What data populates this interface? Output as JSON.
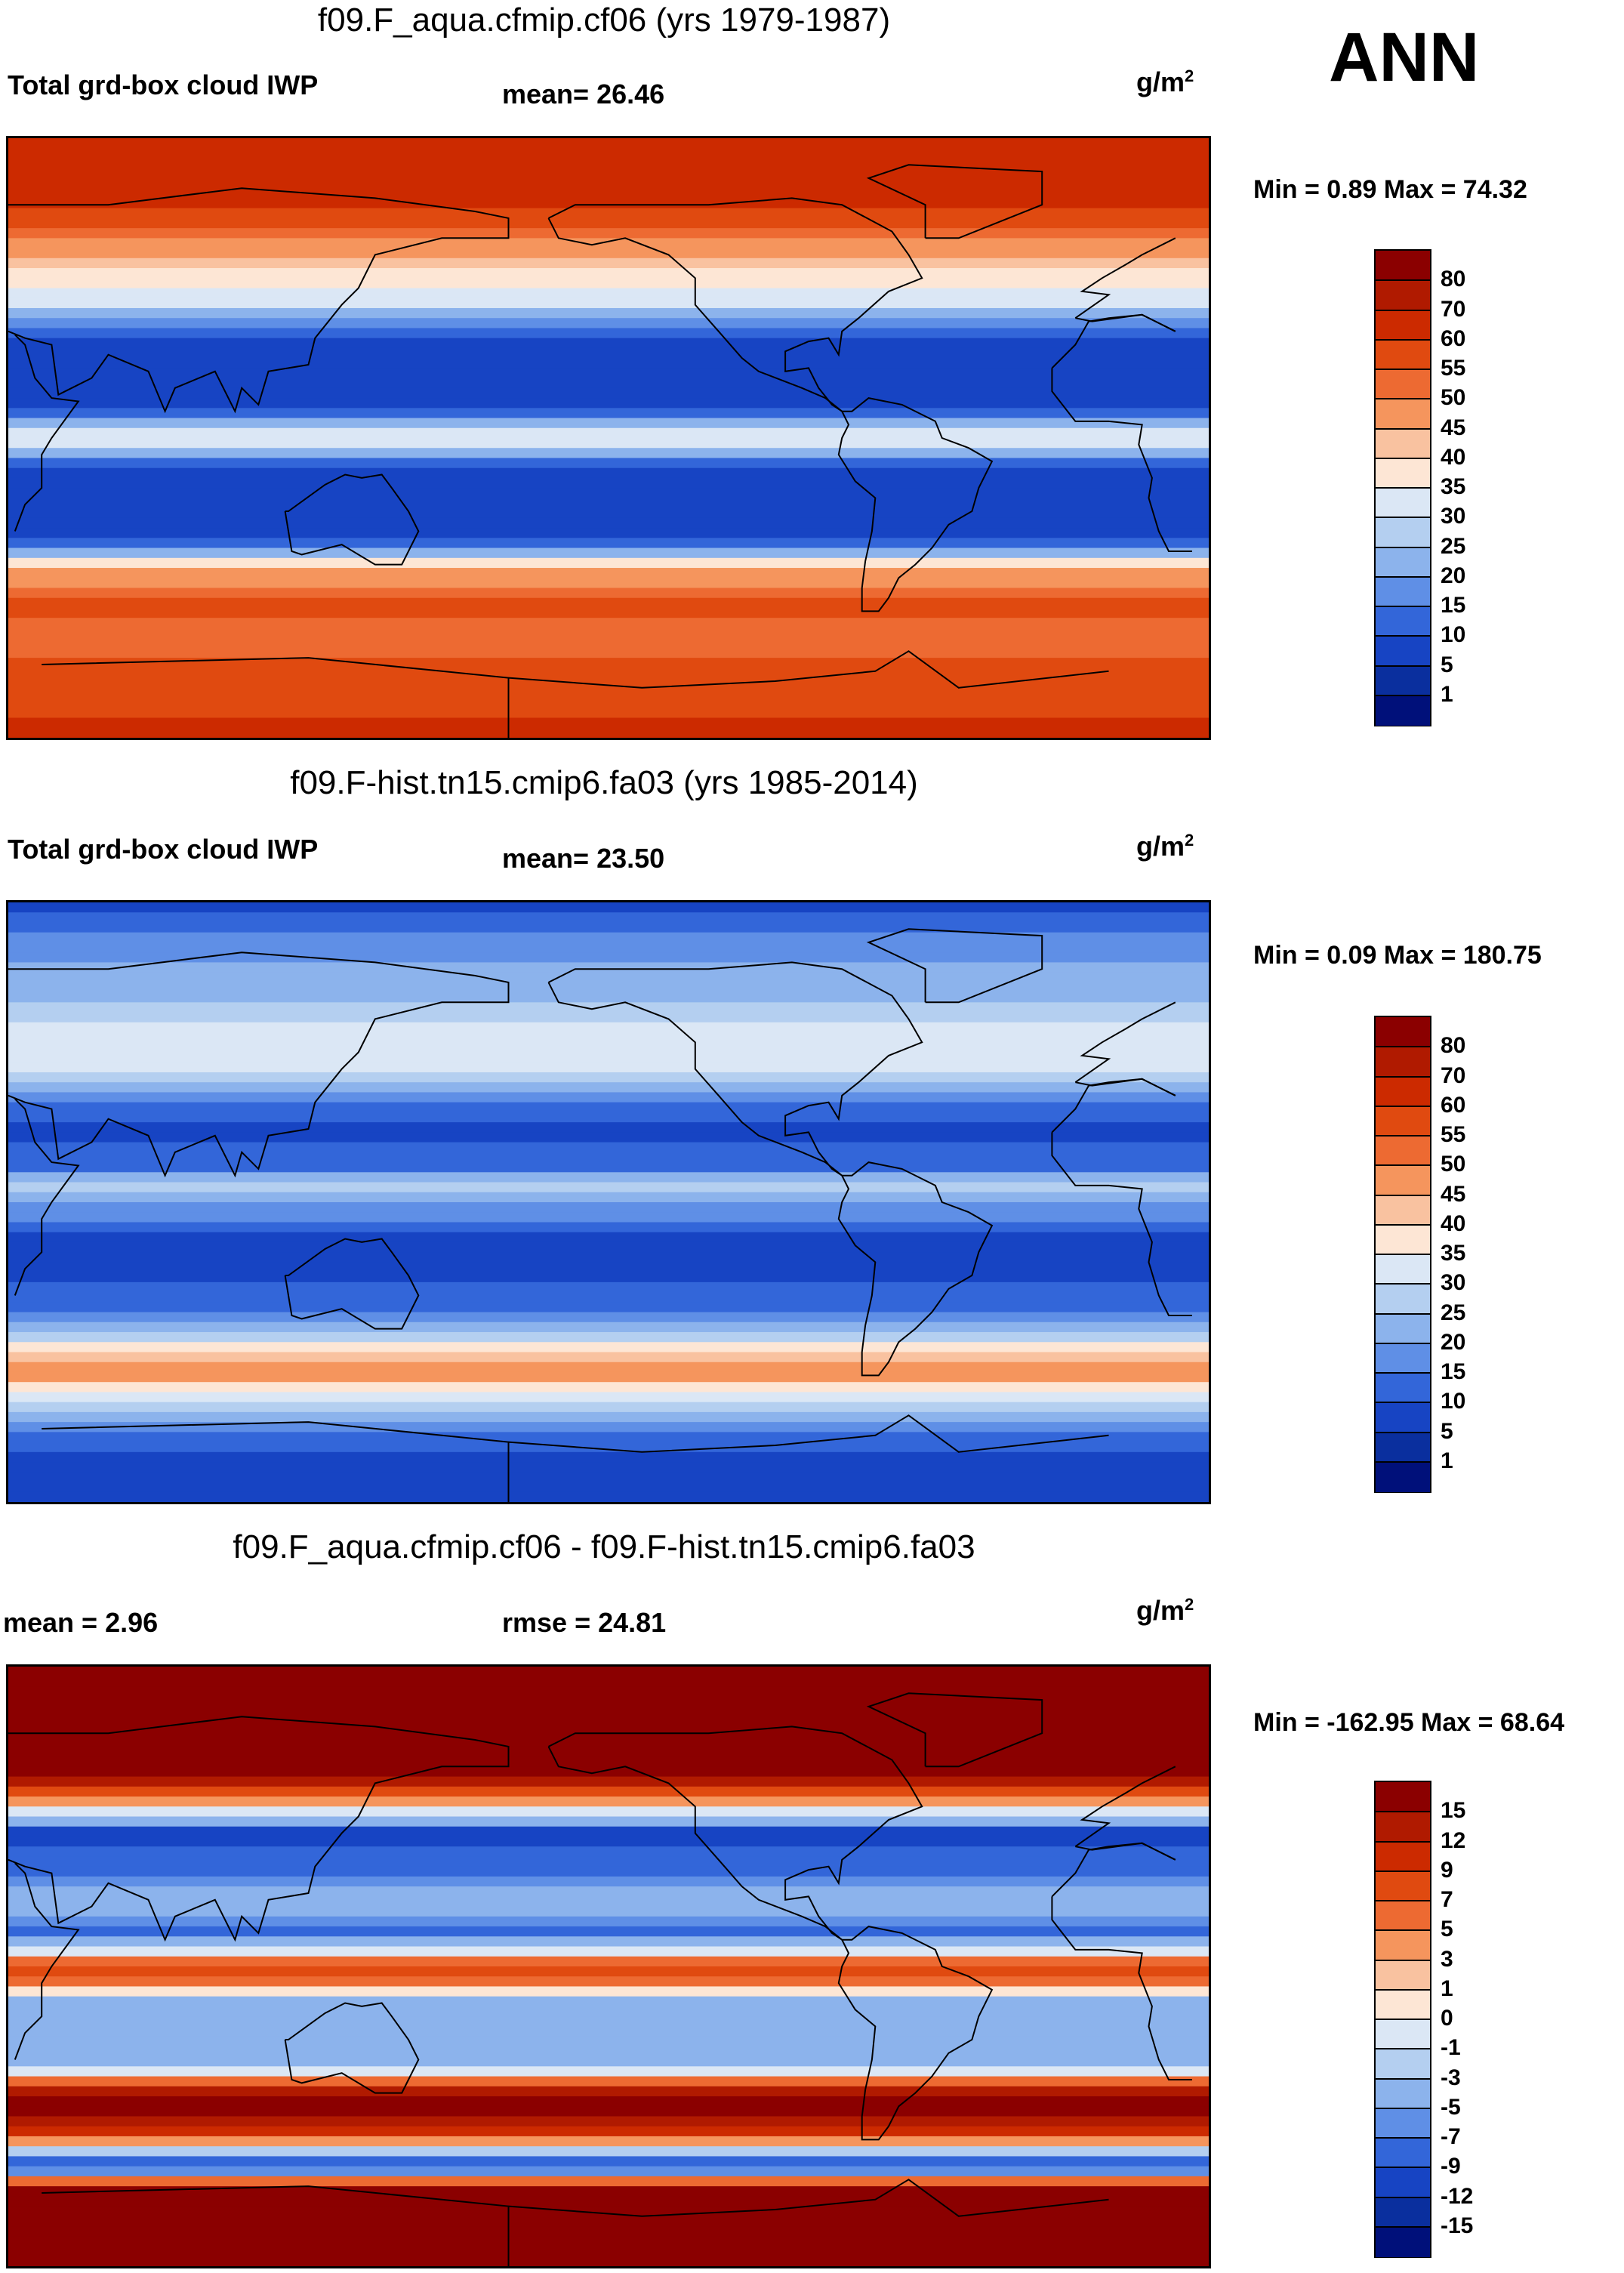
{
  "season": "ANN",
  "panels": [
    {
      "title": "f09.F_aqua.cfmip.cf06 (yrs 1979-1987)",
      "left_label": "Total grd-box cloud IWP",
      "center_label": "mean=  26.46",
      "units": "g/m",
      "units_sup": "2",
      "minmax": "Min =   0.89 Max =  74.32",
      "levels": [
        "80",
        "70",
        "60",
        "55",
        "50",
        "45",
        "40",
        "35",
        "30",
        "25",
        "20",
        "15",
        "10",
        "5",
        "1"
      ],
      "colors": [
        "#8b0000",
        "#b01a00",
        "#cc2a00",
        "#e04a10",
        "#ed6a32",
        "#f5955d",
        "#f9c2a0",
        "#fde6d5",
        "#dbe7f5",
        "#b4cff0",
        "#8cb3ec",
        "#5f8fe6",
        "#3366d9",
        "#1744c3",
        "#0a2f9e",
        "#00107a"
      ]
    },
    {
      "title": "f09.F-hist.tn15.cmip6.fa03 (yrs 1985-2014)",
      "left_label": "Total grd-box cloud IWP",
      "center_label": "mean=  23.50",
      "units": "g/m",
      "units_sup": "2",
      "minmax": "Min =   0.09 Max = 180.75",
      "levels": [
        "80",
        "70",
        "60",
        "55",
        "50",
        "45",
        "40",
        "35",
        "30",
        "25",
        "20",
        "15",
        "10",
        "5",
        "1"
      ],
      "colors": [
        "#8b0000",
        "#b01a00",
        "#cc2a00",
        "#e04a10",
        "#ed6a32",
        "#f5955d",
        "#f9c2a0",
        "#fde6d5",
        "#dbe7f5",
        "#b4cff0",
        "#8cb3ec",
        "#5f8fe6",
        "#3366d9",
        "#1744c3",
        "#0a2f9e",
        "#00107a"
      ]
    },
    {
      "title": "f09.F_aqua.cfmip.cf06 - f09.F-hist.tn15.cmip6.fa03",
      "left_label": "mean =    2.96",
      "center_label": "rmse =  24.81",
      "units": "g/m",
      "units_sup": "2",
      "minmax": "Min = -162.95 Max =  68.64",
      "levels": [
        "15",
        "12",
        "9",
        "7",
        "5",
        "3",
        "1",
        "0",
        "-1",
        "-3",
        "-5",
        "-7",
        "-9",
        "-12",
        "-15"
      ],
      "colors": [
        "#8b0000",
        "#b01a00",
        "#cc2a00",
        "#e04a10",
        "#ed6a32",
        "#f5955d",
        "#f9c2a0",
        "#fde6d5",
        "#dbe7f5",
        "#b4cff0",
        "#8cb3ec",
        "#5f8fe6",
        "#3366d9",
        "#1744c3",
        "#0a2f9e",
        "#00107a"
      ]
    }
  ],
  "chart_data": [
    {
      "type": "heatmap",
      "title": "f09.F_aqua.cfmip.cf06 (yrs 1979-1987)",
      "variable": "Total grd-box cloud IWP",
      "units": "g/m2",
      "mean": 26.46,
      "min": 0.89,
      "max": 74.32,
      "colorbar_levels": [
        1,
        5,
        10,
        15,
        20,
        25,
        30,
        35,
        40,
        45,
        50,
        55,
        60,
        70,
        80
      ],
      "zonal_profile": {
        "lat": [
          90,
          80,
          70,
          60,
          50,
          40,
          30,
          20,
          10,
          5,
          0,
          -5,
          -10,
          -20,
          -30,
          -40,
          -50,
          -60,
          -70,
          -80,
          -90
        ],
        "value": [
          62,
          65,
          60,
          52,
          38,
          30,
          8,
          5,
          6,
          22,
          35,
          22,
          6,
          5,
          8,
          45,
          58,
          50,
          60,
          58,
          62
        ]
      }
    },
    {
      "type": "heatmap",
      "title": "f09.F-hist.tn15.cmip6.fa03 (yrs 1985-2014)",
      "variable": "Total grd-box cloud IWP",
      "units": "g/m2",
      "mean": 23.5,
      "min": 0.09,
      "max": 180.75,
      "colorbar_levels": [
        1,
        5,
        10,
        15,
        20,
        25,
        30,
        35,
        40,
        45,
        50,
        55,
        60,
        70,
        80
      ],
      "zonal_profile": {
        "lat": [
          90,
          80,
          70,
          60,
          50,
          40,
          30,
          20,
          10,
          5,
          0,
          -5,
          -10,
          -20,
          -30,
          -40,
          -50,
          -60,
          -70,
          -80,
          -90
        ],
        "value": [
          8,
          15,
          22,
          25,
          35,
          30,
          15,
          8,
          14,
          28,
          22,
          15,
          10,
          8,
          12,
          28,
          50,
          30,
          12,
          8,
          6
        ]
      }
    },
    {
      "type": "heatmap",
      "title": "f09.F_aqua.cfmip.cf06 - f09.F-hist.tn15.cmip6.fa03",
      "units": "g/m2",
      "mean": 2.96,
      "rmse": 24.81,
      "min": -162.95,
      "max": 68.64,
      "colorbar_levels": [
        -15,
        -12,
        -9,
        -7,
        -5,
        -3,
        -1,
        0,
        1,
        3,
        5,
        7,
        9,
        12,
        15
      ],
      "zonal_profile": {
        "lat": [
          90,
          80,
          70,
          60,
          50,
          40,
          30,
          20,
          10,
          5,
          0,
          -5,
          -10,
          -20,
          -30,
          -40,
          -50,
          -60,
          -70,
          -80,
          -90
        ],
        "value": [
          40,
          35,
          25,
          20,
          5,
          -10,
          -8,
          -3,
          -8,
          -2,
          8,
          5,
          -5,
          -3,
          -4,
          18,
          10,
          -12,
          30,
          40,
          45
        ]
      }
    }
  ]
}
